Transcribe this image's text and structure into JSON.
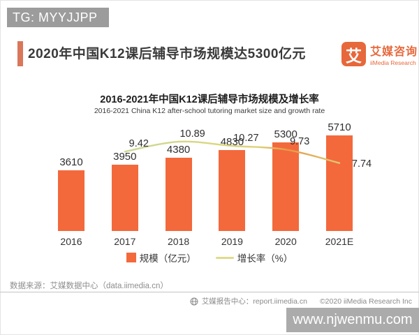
{
  "watermark_top": "TG: MYYJJPP",
  "watermark_bottom": "www.njwenmu.com",
  "header": {
    "title": "2020年中国K12课后辅导市场规模达5300亿元",
    "logo": {
      "glyph": "艾",
      "brand_cn": "艾媒咨询",
      "brand_en": "iiMedia Research"
    }
  },
  "chart_data": {
    "type": "bar+line",
    "title": "2016-2021年中国K12课后辅导市场规模及增长率",
    "subtitle": "2016-2021 China K12 after-school tutoring market size and growth rate",
    "categories": [
      "2016",
      "2017",
      "2018",
      "2019",
      "2020",
      "2021E"
    ],
    "series": [
      {
        "name": "规模（亿元）",
        "type": "bar",
        "values": [
          3610,
          3950,
          4380,
          4830,
          5300,
          5710
        ],
        "color": "#f3693c"
      },
      {
        "name": "增长率（%）",
        "type": "line",
        "x": [
          "2017",
          "2018",
          "2019",
          "2020",
          "2021E"
        ],
        "values": [
          9.42,
          10.89,
          10.27,
          9.73,
          7.74
        ],
        "color": "#dedc8b"
      }
    ],
    "legend_position": "bottom",
    "grid": false,
    "value_labels": true
  },
  "footer": {
    "source": "数据来源：艾媒数据中心（data.iimedia.cn）",
    "report_center": "艾媒报告中心：report.iimedia.cn",
    "copyright": "©2020 iiMedia Research Inc"
  },
  "colors": {
    "bar": "#f3693c",
    "line": "#dedc8b",
    "accent": "#d9775a",
    "brand": "#e7683b",
    "watermark": "#9c9c9c"
  }
}
